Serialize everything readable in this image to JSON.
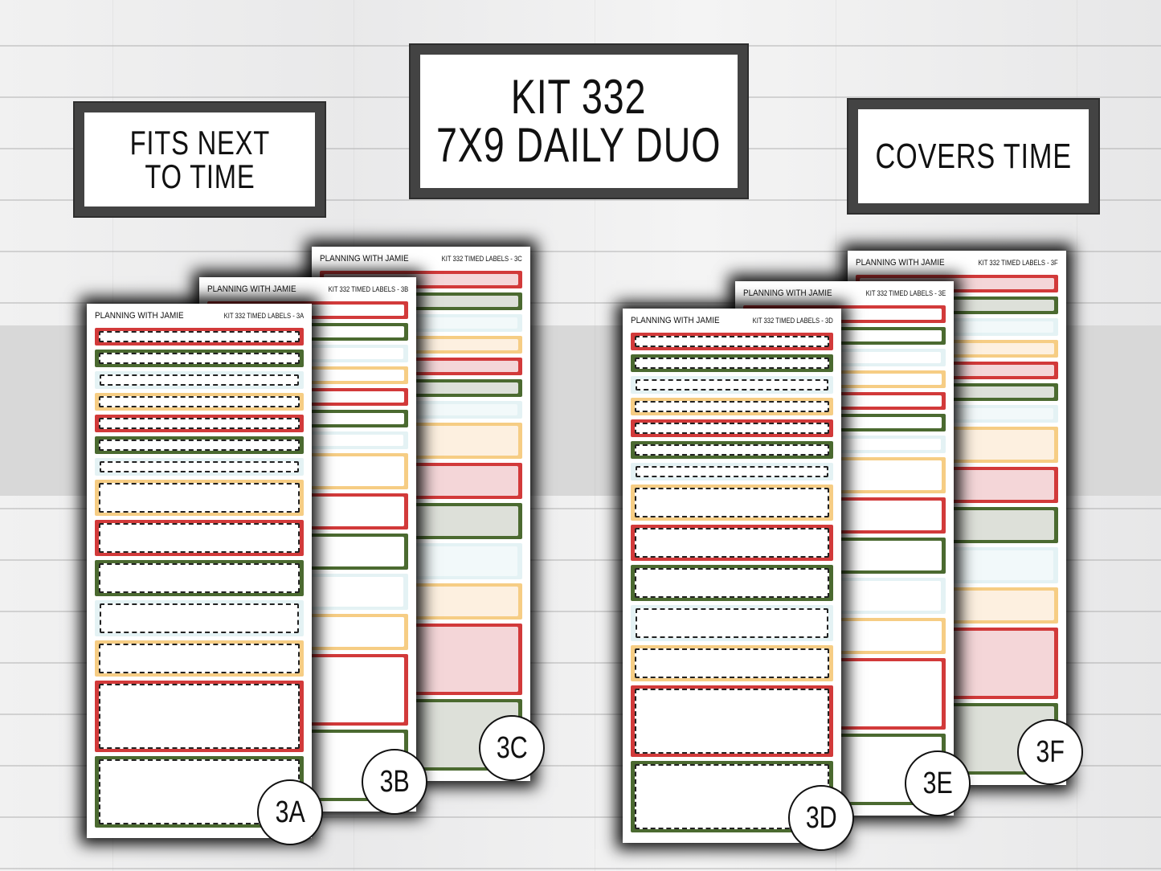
{
  "headings": {
    "left": [
      "FITS NEXT",
      "TO TIME"
    ],
    "center": [
      "KIT 332",
      "7X9 DAILY DUO"
    ],
    "right": [
      "COVERS TIME"
    ]
  },
  "colors": {
    "red": "#d23a3a",
    "green": "#4b6a30",
    "blue": "#e4f2f4",
    "yellow": "#f6cd84",
    "frame": "#434343"
  },
  "row_pattern": [
    "red",
    "green",
    "blue",
    "yellow",
    "red",
    "green",
    "blue",
    "yellow",
    "red",
    "green",
    "blue",
    "yellow",
    "red",
    "green"
  ],
  "sheets": [
    {
      "id": "3C",
      "brand": "PLANNING WITH JAMIE",
      "kit": "KIT 332 TIMED LABELS - 3C",
      "badge": "3C",
      "style": "tinted"
    },
    {
      "id": "3B",
      "brand": "PLANNING WITH JAMIE",
      "kit": "KIT 332 TIMED LABELS - 3B",
      "badge": "3B",
      "style": "plain"
    },
    {
      "id": "3A",
      "brand": "PLANNING WITH JAMIE",
      "kit": "KIT 332 TIMED LABELS - 3A",
      "badge": "3A",
      "style": "dotted"
    },
    {
      "id": "3F",
      "brand": "PLANNING WITH JAMIE",
      "kit": "KIT 332 TIMED LABELS - 3F",
      "badge": "3F",
      "style": "tinted"
    },
    {
      "id": "3E",
      "brand": "PLANNING WITH JAMIE",
      "kit": "KIT 332 TIMED LABELS - 3E",
      "badge": "3E",
      "style": "plain"
    },
    {
      "id": "3D",
      "brand": "PLANNING WITH JAMIE",
      "kit": "KIT 332 TIMED LABELS - 3D",
      "badge": "3D",
      "style": "dotted"
    }
  ]
}
